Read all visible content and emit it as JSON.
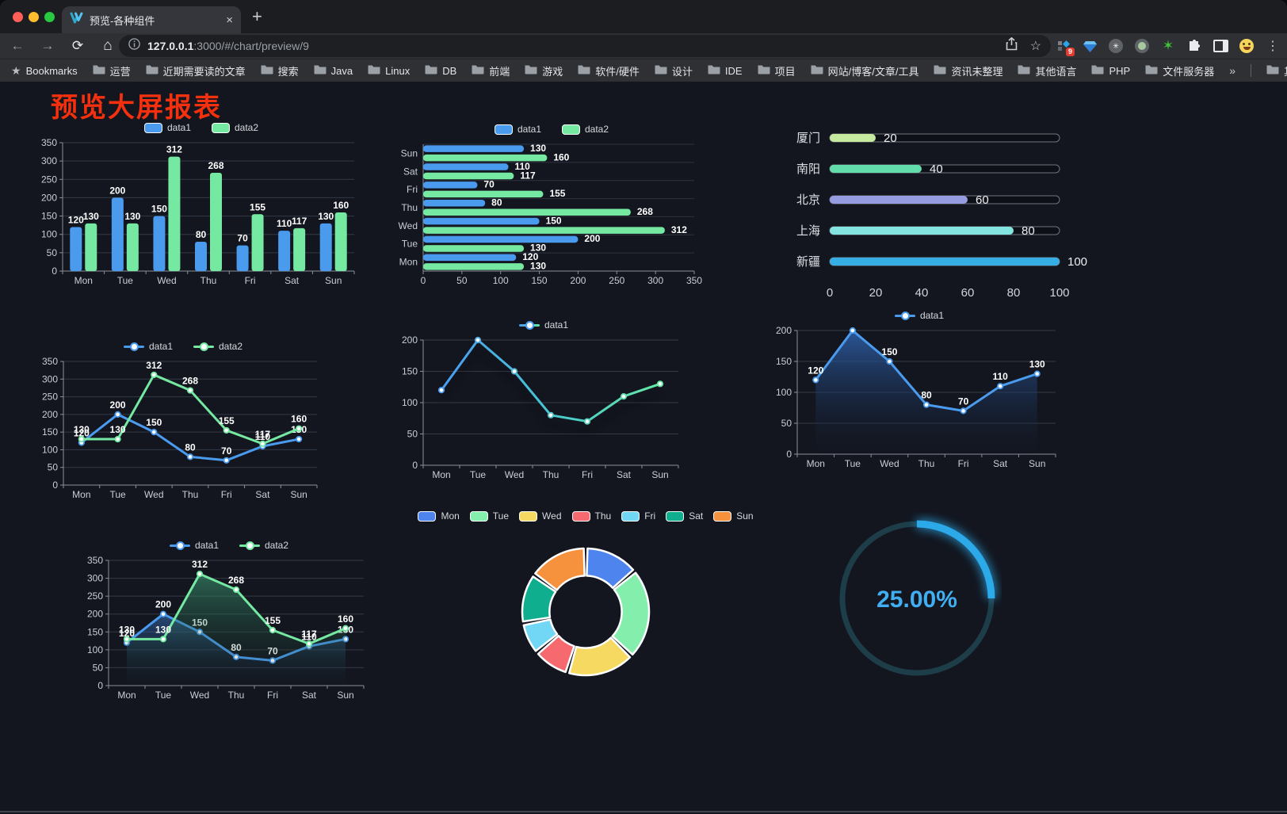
{
  "browser": {
    "tab_title": "预览-各种组件",
    "url_host": "127.0.0.1",
    "url_rest": ":3000/#/chart/preview/9",
    "bookmarks_root": "Bookmarks",
    "bookmark_folders": [
      "运营",
      "近期需要读的文章",
      "搜索",
      "Java",
      "Linux",
      "DB",
      "前端",
      "游戏",
      "软件/硬件",
      "设计",
      "IDE",
      "项目",
      "网站/博客/文章/工具",
      "资讯未整理",
      "其他语言",
      "PHP",
      "文件服务器"
    ],
    "overflow_chevron": "»",
    "other_bookmarks": "其他书签",
    "extension_badge": "9",
    "tab_close": "×",
    "new_tab": "+"
  },
  "page": {
    "title": "预览大屏报表",
    "title_color": "#f4300e",
    "background": "#13161f"
  },
  "chart_data": [
    {
      "id": "bar-grouped",
      "type": "bar",
      "categories": [
        "Mon",
        "Tue",
        "Wed",
        "Thu",
        "Fri",
        "Sat",
        "Sun"
      ],
      "series": [
        {
          "name": "data1",
          "color": "#4a9bee",
          "values": [
            120,
            200,
            150,
            80,
            70,
            110,
            130
          ]
        },
        {
          "name": "data2",
          "color": "#75e8a2",
          "values": [
            130,
            130,
            312,
            268,
            155,
            117,
            160
          ]
        }
      ],
      "ylim": [
        0,
        350
      ],
      "ytick_step": 50,
      "labels": true,
      "legend_position": "top"
    },
    {
      "id": "bar-horizontal",
      "type": "bar-horizontal",
      "categories": [
        "Mon",
        "Tue",
        "Wed",
        "Thu",
        "Fri",
        "Sat",
        "Sun"
      ],
      "display_order_top_to_bottom": [
        "Sun",
        "Sat",
        "Fri",
        "Thu",
        "Wed",
        "Tue",
        "Mon"
      ],
      "series": [
        {
          "name": "data1",
          "color": "#4a9bee",
          "values": [
            120,
            200,
            150,
            80,
            70,
            110,
            130
          ]
        },
        {
          "name": "data2",
          "color": "#75e8a2",
          "values": [
            130,
            130,
            312,
            268,
            155,
            117,
            160
          ]
        }
      ],
      "xlim": [
        0,
        350
      ],
      "xtick_step": 50,
      "labels": true,
      "legend_position": "top"
    },
    {
      "id": "progress",
      "type": "progress-bar",
      "items": [
        {
          "label": "厦门",
          "value": 20,
          "color": "#c6e9a0"
        },
        {
          "label": "南阳",
          "value": 40,
          "color": "#63dcab"
        },
        {
          "label": "北京",
          "value": 60,
          "color": "#959ce0"
        },
        {
          "label": "上海",
          "value": 80,
          "color": "#84e4df"
        },
        {
          "label": "新疆",
          "value": 100,
          "color": "#35aee3"
        }
      ],
      "xticks": [
        0,
        20,
        40,
        60,
        80,
        100
      ],
      "max": 100
    },
    {
      "id": "line-grouped",
      "type": "line",
      "categories": [
        "Mon",
        "Tue",
        "Wed",
        "Thu",
        "Fri",
        "Sat",
        "Sun"
      ],
      "series": [
        {
          "name": "data1",
          "color": "#4a9bee",
          "values": [
            120,
            200,
            150,
            80,
            70,
            110,
            130
          ]
        },
        {
          "name": "data2",
          "color": "#75e8a2",
          "values": [
            130,
            130,
            312,
            268,
            155,
            117,
            160
          ]
        }
      ],
      "ylim": [
        0,
        350
      ],
      "ytick_step": 50,
      "labels": true,
      "legend_position": "top"
    },
    {
      "id": "line-gradient",
      "type": "line",
      "categories": [
        "Mon",
        "Tue",
        "Wed",
        "Thu",
        "Fri",
        "Sat",
        "Sun"
      ],
      "series": [
        {
          "name": "data1",
          "gradient": [
            "#4a9cf2",
            "#46c8cf",
            "#64e9a2"
          ],
          "values": [
            120,
            200,
            150,
            80,
            70,
            110,
            130
          ]
        }
      ],
      "ylim": [
        0,
        200
      ],
      "ytick_step": 50,
      "labels": false,
      "shadow": true,
      "legend_position": "top"
    },
    {
      "id": "area-single",
      "type": "area",
      "categories": [
        "Mon",
        "Tue",
        "Wed",
        "Thu",
        "Fri",
        "Sat",
        "Sun"
      ],
      "series": [
        {
          "name": "data1",
          "color": "#4a9bee",
          "fill": [
            "rgba(47,99,175,0.85)",
            "rgba(18,28,48,0.03)"
          ],
          "values": [
            120,
            200,
            150,
            80,
            70,
            110,
            130
          ]
        }
      ],
      "ylim": [
        0,
        200
      ],
      "ytick_step": 50,
      "labels": true,
      "legend_position": "top"
    },
    {
      "id": "area-grouped",
      "type": "area",
      "categories": [
        "Mon",
        "Tue",
        "Wed",
        "Thu",
        "Fri",
        "Sat",
        "Sun"
      ],
      "series": [
        {
          "name": "data1",
          "color": "#4a9bee",
          "fill": [
            "rgba(58,118,195,0.55)",
            "rgba(20,30,50,0.03)"
          ],
          "values": [
            120,
            200,
            150,
            80,
            70,
            110,
            130
          ]
        },
        {
          "name": "data2",
          "color": "#75e8a2",
          "fill": [
            "rgba(64,166,122,0.55)",
            "rgba(18,40,34,0.03)"
          ],
          "values": [
            130,
            130,
            312,
            268,
            155,
            117,
            160
          ]
        }
      ],
      "ylim": [
        0,
        350
      ],
      "ytick_step": 50,
      "labels": true,
      "legend_position": "top"
    },
    {
      "id": "donut",
      "type": "pie",
      "items": [
        {
          "name": "Mon",
          "value": 120,
          "color": "#4d84ee"
        },
        {
          "name": "Tue",
          "value": 200,
          "color": "#84efad"
        },
        {
          "name": "Wed",
          "value": 150,
          "color": "#f6d960"
        },
        {
          "name": "Thu",
          "value": 80,
          "color": "#f5696f"
        },
        {
          "name": "Fri",
          "value": 70,
          "color": "#72d6f5"
        },
        {
          "name": "Sat",
          "value": 110,
          "color": "#0fae8e"
        },
        {
          "name": "Sun",
          "value": 130,
          "color": "#f6913e"
        }
      ],
      "inner_radius_ratio": 0.57,
      "legend_position": "top"
    },
    {
      "id": "gauge",
      "type": "gauge",
      "value": 25,
      "display": "25.00%",
      "color": "#2ba9e8",
      "track_color": "#1d3e49"
    }
  ]
}
